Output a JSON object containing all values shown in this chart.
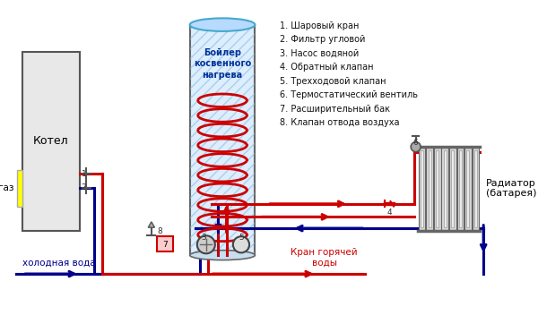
{
  "bg_color": "#ffffff",
  "red": "#cc0000",
  "dark_blue": "#00008B",
  "gray": "#888888",
  "light_blue_fill": "#cce8ff",
  "boiler_fill": "#ddeeff",
  "kotel_fill": "#e8e8e8",
  "yellow": "#ffff00",
  "legend_items": [
    "1. Шаровый кран",
    "2. Фильтр угловой",
    "3. Насос водяной",
    "4. Обратный клапан",
    "5. Трехходовой клапан",
    "6. Термостатический вентиль",
    "7. Расширительный бак",
    "8. Клапан отвода воздуха"
  ],
  "label_kotel": "Котел",
  "label_boiler": "Бойлер\nкосвенного\nнагрева",
  "label_gaz": "газ",
  "label_cold_water": "холодная вода",
  "label_hot_water": "Кран горячей\nводы",
  "label_radiator": "Радиатор\n(батарея)"
}
